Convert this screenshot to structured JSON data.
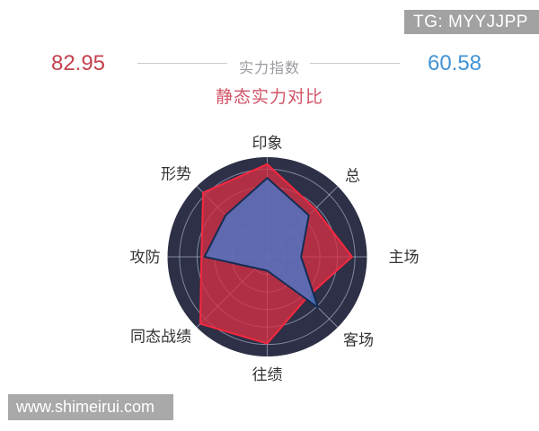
{
  "header": {
    "tg_badge": "TG: MYYJJPP",
    "home_score": "82.95",
    "away_score": "60.58",
    "center_label": "实力指数",
    "title": "静态实力对比"
  },
  "watermark": "www.shimeirui.com",
  "colors": {
    "home_score": "#c4424e",
    "away_score": "#4193d5",
    "title": "#d05568",
    "radar_background": "#2d3046",
    "grid_line": "rgba(200,208,235,0.55)",
    "red_fill": "rgba(214,48,69,0.78)",
    "red_stroke": "#f5283f",
    "blue_fill": "rgba(77,118,200,0.82)",
    "blue_stroke": "#142c52",
    "axis_label": "#333333"
  },
  "chart_data": {
    "type": "radar",
    "title": "静态实力对比",
    "categories": [
      "印象",
      "总",
      "主场",
      "客场",
      "往绩",
      "同态战绩",
      "攻防",
      "形势"
    ],
    "series": [
      {
        "name": "82.95",
        "role": "home",
        "values": [
          93,
          68,
          85,
          57,
          87,
          95,
          66,
          91
        ]
      },
      {
        "name": "60.58",
        "role": "away",
        "values": [
          79,
          59,
          34,
          72,
          14,
          16,
          63,
          59
        ]
      }
    ],
    "max": 100,
    "rings": 5,
    "ring_max_fraction": 0.88,
    "start_axis": "top",
    "direction": "clockwise",
    "grid": "circular",
    "legend_position": "none"
  }
}
